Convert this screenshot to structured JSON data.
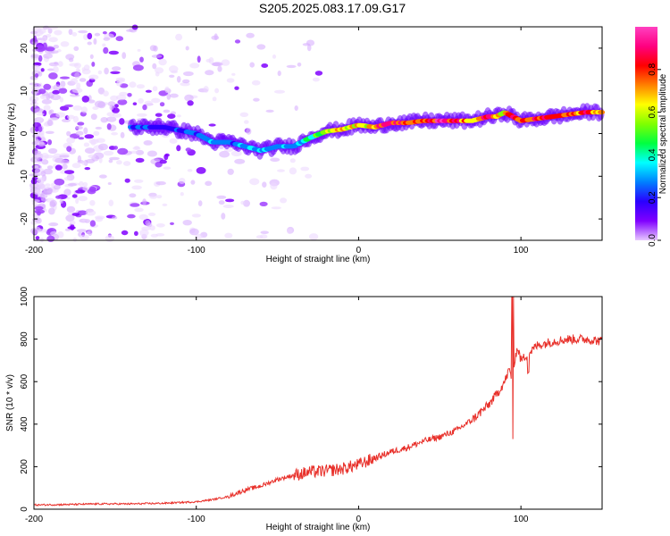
{
  "figure": {
    "title": "S205.2025.083.17.09.G17"
  },
  "chart_data": [
    {
      "type": "heatmap",
      "title": "S205.2025.083.17.09.G17",
      "xlabel": "Height of straight line (km)",
      "ylabel": "Frequency (Hz)",
      "xlim": [
        -200,
        150
      ],
      "ylim": [
        -25,
        25
      ],
      "x_ticks": [
        -200,
        -100,
        0,
        100
      ],
      "x_tick_labels": [
        "-200",
        "-100",
        "0",
        "100"
      ],
      "y_ticks": [
        -20,
        -10,
        0,
        10,
        20
      ],
      "y_tick_labels": [
        "-20",
        "-10",
        "0",
        "10",
        "20"
      ],
      "grid": false,
      "ridge": {
        "x": [
          -140,
          -120,
          -100,
          -90,
          -80,
          -70,
          -60,
          -50,
          -40,
          -30,
          -20,
          -10,
          0,
          10,
          20,
          30,
          40,
          50,
          60,
          70,
          80,
          85,
          90,
          95,
          100,
          110,
          120,
          130,
          140,
          150
        ],
        "y": [
          1.5,
          1.5,
          0,
          -2,
          -2,
          -3,
          -4,
          -3,
          -3,
          -1,
          0.5,
          1,
          2,
          1.5,
          2.5,
          2.5,
          3,
          3,
          3,
          3,
          4,
          4,
          5,
          4,
          3,
          3.5,
          4,
          4.5,
          5,
          5
        ],
        "amplitude": [
          0.25,
          0.2,
          0.25,
          0.3,
          0.25,
          0.3,
          0.3,
          0.3,
          0.3,
          0.4,
          0.6,
          0.65,
          0.65,
          0.7,
          0.9,
          0.8,
          0.8,
          0.9,
          0.85,
          0.6,
          0.85,
          0.7,
          0.6,
          0.85,
          0.7,
          0.8,
          0.85,
          0.7,
          0.85,
          0.7
        ]
      },
      "colorbar": {
        "label": "Normalized spectral amplitude",
        "range": [
          0,
          1
        ],
        "ticks": [
          0,
          0.2,
          0.4,
          0.6,
          0.8
        ],
        "tick_labels": [
          "0.0",
          "0.2",
          "0.4",
          "0.6",
          "0.8"
        ],
        "colormap": [
          "#e7c8ff",
          "#8000ff",
          "#2a00ff",
          "#0080ff",
          "#00ffff",
          "#00ff40",
          "#80ff00",
          "#ffff00",
          "#ff8000",
          "#ff0000",
          "#ff0080",
          "#ff40c0"
        ]
      }
    },
    {
      "type": "line",
      "xlabel": "Height of straight line (km)",
      "ylabel": "SNR (10 * v/v)",
      "xlim": [
        -200,
        150
      ],
      "ylim": [
        0,
        1000
      ],
      "x_ticks": [
        -200,
        -100,
        0,
        100
      ],
      "x_tick_labels": [
        "-200",
        "-100",
        "0",
        "100"
      ],
      "y_ticks": [
        0,
        200,
        400,
        600,
        800,
        1000
      ],
      "y_tick_labels": [
        "0",
        "200",
        "400",
        "600",
        "800",
        "1000"
      ],
      "grid": false,
      "series": [
        {
          "color": "#e8302a",
          "x": [
            -200,
            -180,
            -160,
            -140,
            -120,
            -100,
            -90,
            -80,
            -70,
            -60,
            -50,
            -40,
            -30,
            -20,
            -10,
            0,
            10,
            20,
            30,
            40,
            50,
            60,
            70,
            80,
            85,
            90,
            93,
            95,
            96,
            98,
            100,
            110,
            120,
            130,
            140,
            150
          ],
          "y": [
            20,
            22,
            25,
            25,
            28,
            35,
            45,
            60,
            90,
            110,
            140,
            160,
            175,
            180,
            190,
            210,
            240,
            270,
            290,
            320,
            340,
            370,
            420,
            490,
            540,
            600,
            660,
            560,
            700,
            760,
            700,
            770,
            790,
            800,
            800,
            790
          ]
        }
      ]
    }
  ]
}
